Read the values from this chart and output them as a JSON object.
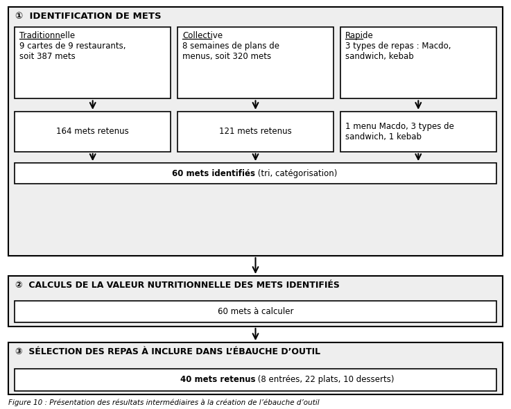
{
  "title": "Figure 10 : Présentation des résultats intermédiaires à la création de l’ébauche d’outil",
  "bg_color": "#eeeeee",
  "white": "#ffffff",
  "black": "#000000",
  "step1_header": "①  IDENTIFICATION DE METS",
  "step2_header": "②  CALCULS DE LA VALEUR NUTRITIONNELLE DES METS IDENTIFIÉS",
  "step3_header": "③  SÉLECTION DES REPAS À INCLURE DANS L’ÉBAUCHE D’OUTIL",
  "box_trad_title": "Traditionnelle",
  "box_trad_text": "9 cartes de 9 restaurants,\nsoit 387 mets",
  "box_coll_title": "Collective",
  "box_coll_text": "8 semaines de plans de\nmenus, soit 320 mets",
  "box_rap_title": "Rapide",
  "box_rap_text": "3 types de repas : Macdo,\nsandwich, kebab",
  "box_164": "164 mets retenus",
  "box_121": "121 mets retenus",
  "box_macdo": "1 menu Macdo, 3 types de\nsandwich, 1 kebab",
  "box_60_bold": "60 mets identifiés",
  "box_60_normal": " (tri, catégorisation)",
  "box_60calc": "60 mets à calculer",
  "box_40_bold": "40 mets retenus",
  "box_40_normal": " (8 entrées, 22 plats, 10 desserts)"
}
